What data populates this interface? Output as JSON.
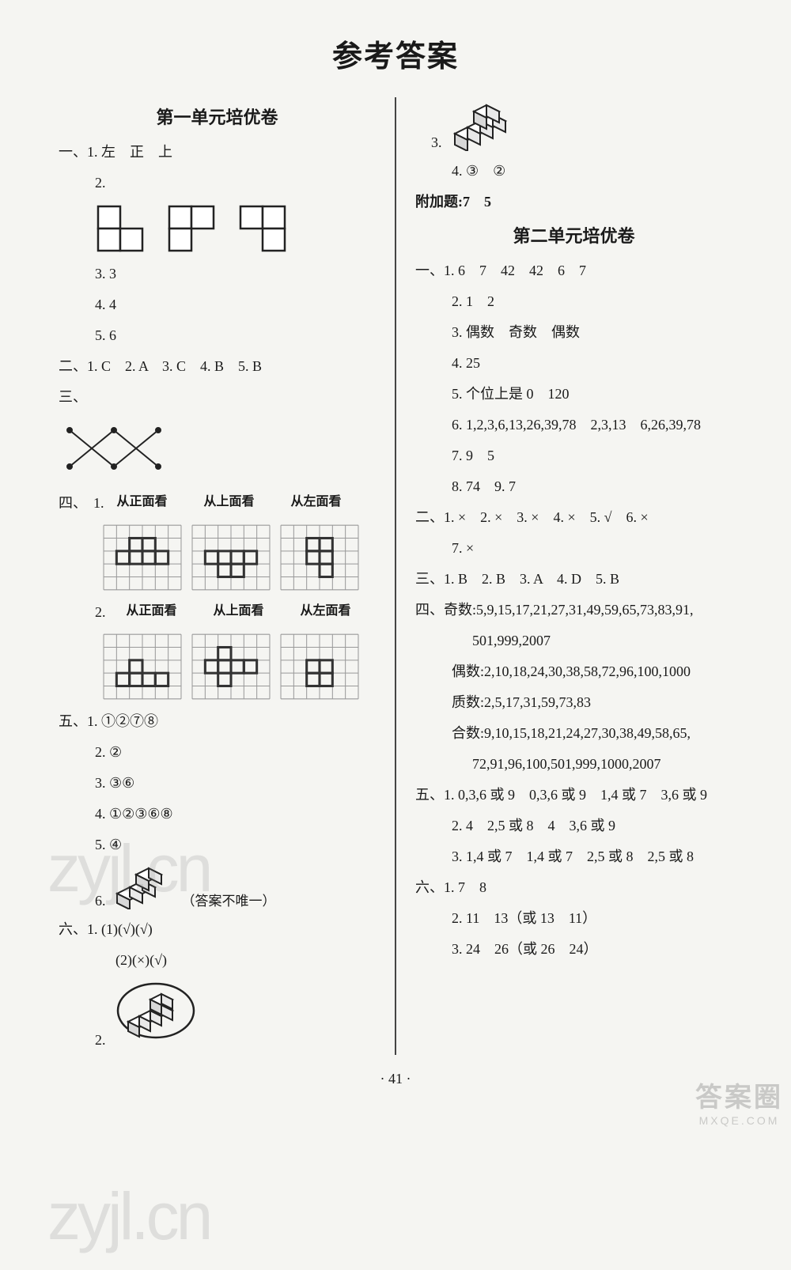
{
  "page": {
    "title": "参考答案",
    "page_number": "· 41 ·"
  },
  "watermarks": {
    "w1": "zyjl.cn",
    "w2": "zyjl.cn"
  },
  "corner": {
    "big": "答案圈",
    "small": "MXQE.COM"
  },
  "unit1": {
    "heading": "第一单元培优卷",
    "sec1": {
      "label": "一、",
      "q1": "1. 左　正　上",
      "q2": "2.",
      "q3": "3. 3",
      "q4": "4. 4",
      "q5": "5. 6"
    },
    "sec2": {
      "label": "二、",
      "line": "1. C　2. A　3. C　4. B　5. B"
    },
    "sec3": {
      "label": "三、"
    },
    "sec4": {
      "label": "四、",
      "views": [
        "从正面看",
        "从上面看",
        "从左面看"
      ],
      "row1_num": "1.",
      "row2_num": "2.",
      "grid": {
        "cols": 6,
        "rows": 5,
        "cell": 16,
        "stroke": "#333333"
      },
      "row1_shapes": [
        [
          [
            1,
            2
          ],
          [
            2,
            2
          ],
          [
            3,
            2
          ],
          [
            4,
            2
          ],
          [
            2,
            1
          ],
          [
            3,
            1
          ]
        ],
        [
          [
            1,
            2
          ],
          [
            2,
            2
          ],
          [
            3,
            2
          ],
          [
            4,
            2
          ],
          [
            2,
            3
          ],
          [
            3,
            3
          ]
        ],
        [
          [
            2,
            1
          ],
          [
            3,
            1
          ],
          [
            2,
            2
          ],
          [
            3,
            2
          ],
          [
            3,
            3
          ]
        ]
      ],
      "row2_shapes": [
        [
          [
            1,
            3
          ],
          [
            2,
            3
          ],
          [
            3,
            3
          ],
          [
            4,
            3
          ],
          [
            2,
            2
          ]
        ],
        [
          [
            1,
            2
          ],
          [
            2,
            2
          ],
          [
            3,
            2
          ],
          [
            4,
            2
          ],
          [
            2,
            1
          ],
          [
            2,
            3
          ]
        ],
        [
          [
            2,
            2
          ],
          [
            3,
            2
          ],
          [
            2,
            3
          ],
          [
            3,
            3
          ]
        ]
      ]
    },
    "sec5": {
      "label": "五、",
      "q1": "1. ①②⑦⑧",
      "q2": "2. ②",
      "q3": "3. ③⑥",
      "q4": "4. ①②③⑥⑧",
      "q5": "5. ④",
      "q6_num": "6.",
      "q6_note": "（答案不唯一）"
    },
    "sec6": {
      "label": "六、",
      "q1a": "1. (1)(√)(√)",
      "q1b": "(2)(×)(√)",
      "q2_num": "2."
    },
    "right_top": {
      "q3_num": "3.",
      "q4": "4. ③　②",
      "bonus": "附加题:7　5"
    }
  },
  "unit2": {
    "heading": "第二单元培优卷",
    "sec1": {
      "label": "一、",
      "q1": "1. 6　7　42　42　6　7",
      "q2": "2. 1　2",
      "q3": "3. 偶数　奇数　偶数",
      "q4": "4. 25",
      "q5": "5. 个位上是 0　120",
      "q6": "6. 1,2,3,6,13,26,39,78　2,3,13　6,26,39,78",
      "q7": "7. 9　5",
      "q8": "8. 74　9. 7"
    },
    "sec2": {
      "label": "二、",
      "l1": "1. ×　2. ×　3. ×　4. ×　5. √　6. ×",
      "l2": "7. ×"
    },
    "sec3": {
      "label": "三、",
      "line": "1. B　2. B　3. A　4. D　5. B"
    },
    "sec4": {
      "label": "四、",
      "odd": "奇数:5,9,15,17,21,27,31,49,59,65,73,83,91,",
      "odd2": "501,999,2007",
      "even": "偶数:2,10,18,24,30,38,58,72,96,100,1000",
      "prime": "质数:2,5,17,31,59,73,83",
      "comp": "合数:9,10,15,18,21,24,27,30,38,49,58,65,",
      "comp2": "72,91,96,100,501,999,1000,2007"
    },
    "sec5": {
      "label": "五、",
      "q1": "1. 0,3,6 或 9　0,3,6 或 9　1,4 或 7　3,6 或 9",
      "q2": "2. 4　2,5 或 8　4　3,6 或 9",
      "q3": "3. 1,4 或 7　1,4 或 7　2,5 或 8　2,5 或 8"
    },
    "sec6": {
      "label": "六、",
      "q1": "1. 7　8",
      "q2": "2. 11　13（或 13　11）",
      "q3": "3. 24　26（或 26　24）"
    }
  }
}
